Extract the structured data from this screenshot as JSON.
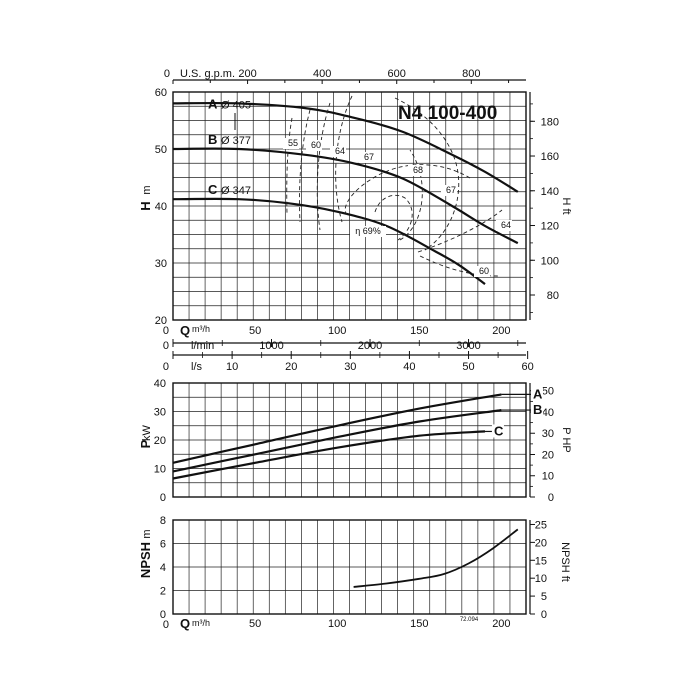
{
  "chart_data": [
    {
      "type": "line",
      "title": "N4 100-400",
      "ylabel": "H m",
      "ylabel_right": "H ft",
      "xlim": [
        0,
        215
      ],
      "ylim": [
        20,
        60
      ],
      "x_ticks": [
        0,
        50,
        100,
        150,
        200
      ],
      "y_ticks": [
        20,
        30,
        40,
        50,
        60
      ],
      "y_right_ticks": [
        "80",
        "100",
        "120",
        "140",
        "160",
        "180"
      ],
      "grid": true,
      "top_scales": [
        {
          "unit": "U.S. g.p.m.",
          "ticks": [
            "0",
            "200",
            "400",
            "600",
            "800"
          ]
        }
      ],
      "bottom_scales": [
        {
          "unit": "Q m³/h",
          "ticks": [
            "0",
            "50",
            "100",
            "150",
            "200"
          ]
        },
        {
          "unit": "l/min",
          "ticks": [
            "0",
            "1000",
            "2000",
            "3000"
          ]
        },
        {
          "unit": "l/s",
          "ticks": [
            "0",
            "10",
            "20",
            "30",
            "40",
            "50",
            "60"
          ]
        }
      ],
      "series": [
        {
          "name": "A",
          "label": "Ø 405",
          "x": [
            0,
            40,
            80,
            110,
            140,
            170,
            190,
            210
          ],
          "y": [
            58,
            58,
            57.2,
            55.5,
            53,
            49,
            46,
            42.5
          ]
        },
        {
          "name": "B",
          "label": "Ø 377",
          "x": [
            0,
            40,
            80,
            110,
            140,
            170,
            190,
            210
          ],
          "y": [
            50,
            50,
            49,
            47.5,
            44.8,
            40,
            36.5,
            33.5
          ]
        },
        {
          "name": "C",
          "label": "Ø 347",
          "x": [
            0,
            40,
            70,
            100,
            130,
            160,
            175,
            190
          ],
          "y": [
            41.2,
            41.2,
            40.5,
            39,
            36.5,
            32,
            29.5,
            26.3
          ]
        }
      ],
      "efficiency_labels": [
        "55",
        "60",
        "64",
        "67",
        "68",
        "67",
        "64",
        "60",
        "η 69%"
      ]
    },
    {
      "type": "line",
      "ylabel": "P kW",
      "ylabel_right": "P HP",
      "xlim": [
        0,
        215
      ],
      "ylim": [
        0,
        40
      ],
      "y_ticks": [
        0,
        10,
        20,
        30,
        40
      ],
      "y_right_ticks": [
        "0",
        "10",
        "20",
        "30",
        "40",
        "50"
      ],
      "grid": true,
      "series": [
        {
          "name": "A",
          "x": [
            0,
            50,
            100,
            150,
            200
          ],
          "y": [
            12,
            18.5,
            25,
            31,
            36
          ]
        },
        {
          "name": "B",
          "x": [
            0,
            50,
            100,
            150,
            200
          ],
          "y": [
            9,
            15,
            21,
            26.5,
            30.5
          ]
        },
        {
          "name": "C",
          "x": [
            0,
            50,
            100,
            150,
            190
          ],
          "y": [
            6.5,
            12,
            17.3,
            21.5,
            23
          ]
        }
      ]
    },
    {
      "type": "line",
      "ylabel": "NPSH m",
      "ylabel_right": "NPSH ft",
      "xlabel": "Q m³/h",
      "xlim": [
        0,
        215
      ],
      "ylim": [
        0,
        8
      ],
      "x_ticks": [
        0,
        50,
        100,
        150,
        200
      ],
      "y_ticks": [
        0,
        2,
        4,
        6,
        8
      ],
      "y_right_ticks": [
        "0",
        "5",
        "10",
        "15",
        "20",
        "25"
      ],
      "grid": true,
      "annotation": "72.094",
      "series": [
        {
          "name": "NPSH",
          "x": [
            110,
            130,
            150,
            165,
            180,
            195,
            210
          ],
          "y": [
            2.3,
            2.6,
            3.0,
            3.4,
            4.3,
            5.6,
            7.2
          ]
        }
      ]
    }
  ]
}
